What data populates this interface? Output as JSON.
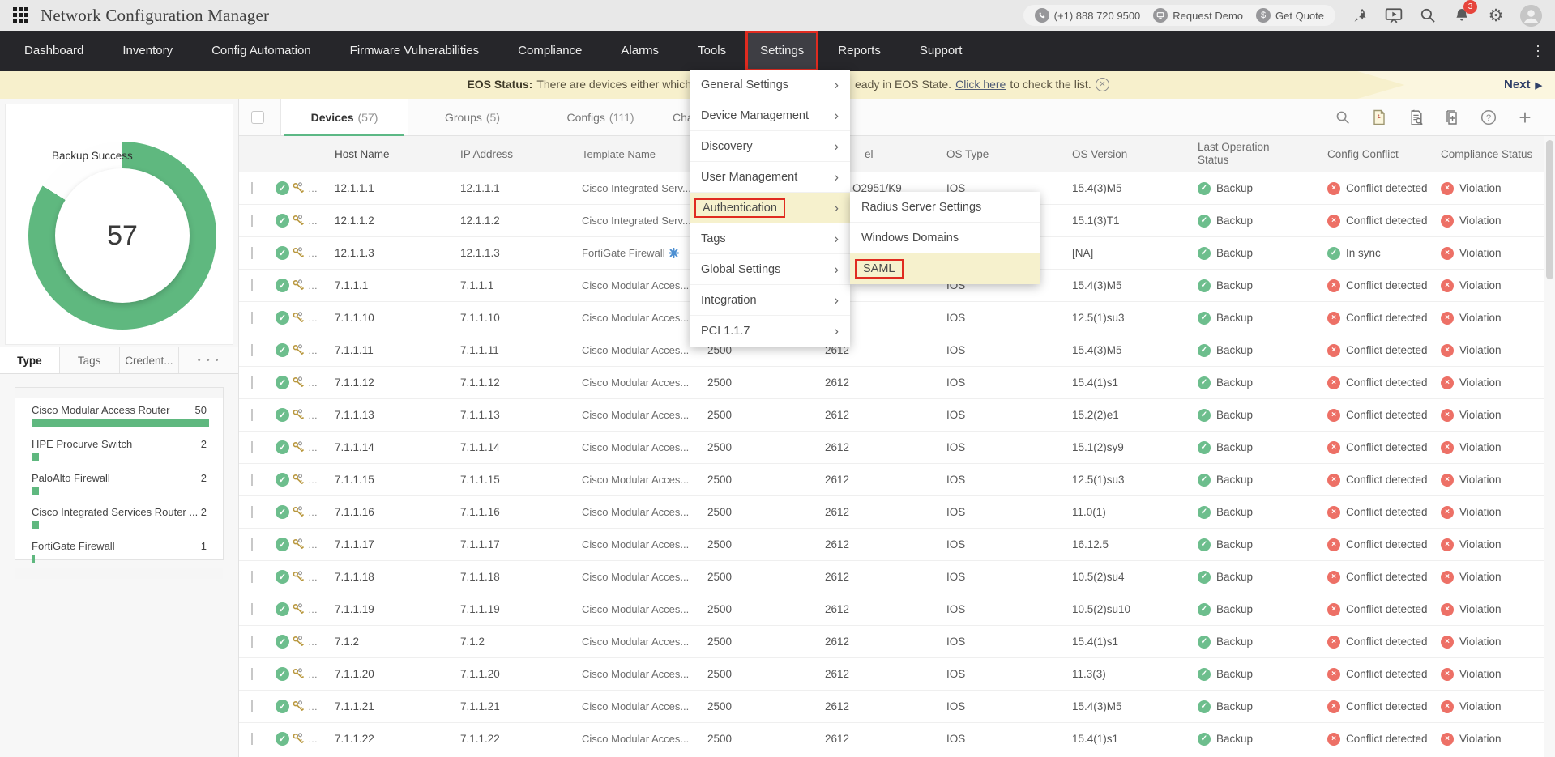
{
  "app": {
    "title": "Network Configuration Manager"
  },
  "topbar": {
    "phone": "(+1) 888 720 9500",
    "request_demo": "Request Demo",
    "get_quote": "Get Quote",
    "notifications_badge": "3"
  },
  "navbar": {
    "items": [
      "Dashboard",
      "Inventory",
      "Config Automation",
      "Firmware Vulnerabilities",
      "Compliance",
      "Alarms",
      "Tools",
      "Settings",
      "Reports",
      "Support"
    ],
    "active_item": "Settings"
  },
  "banner": {
    "label_bold": "EOS Status:",
    "text_left": "There are devices either which",
    "text_right": "eady in EOS State.",
    "link_text": "Click here",
    "text_right_tail": "to check the list.",
    "next_label": "Next"
  },
  "settings_menu": {
    "items": [
      "General Settings",
      "Device Management",
      "Discovery",
      "User Management",
      "Authentication",
      "Tags",
      "Global Settings",
      "Integration",
      "PCI 1.1.7"
    ],
    "highlighted_item": "Authentication",
    "submenu": {
      "items": [
        "Radius Server Settings",
        "Windows Domains",
        "SAML"
      ],
      "highlighted_item": "SAML"
    }
  },
  "sidebar": {
    "donut": {
      "label": "Backup Success",
      "value": "57"
    },
    "tabs": [
      "Type",
      "Tags",
      "Credent..."
    ],
    "more_tab": "• • •",
    "device_types": [
      {
        "name": "Cisco Modular Access Router",
        "count": 50
      },
      {
        "name": "HPE Procurve Switch",
        "count": 2
      },
      {
        "name": "PaloAlto Firewall",
        "count": 2
      },
      {
        "name": "Cisco Integrated Services Router ...",
        "count": 2
      },
      {
        "name": "FortiGate Firewall",
        "count": 1
      }
    ]
  },
  "main": {
    "tabs": [
      {
        "label": "Devices",
        "count": "(57)"
      },
      {
        "label": "Groups",
        "count": "(5)"
      },
      {
        "label": "Configs",
        "count": "(111)"
      },
      {
        "label": "Cha",
        "count": ""
      }
    ],
    "columns": {
      "host": "Host Name",
      "ip": "IP Address",
      "template": "Template Name",
      "series": "",
      "model_fragment": "el",
      "os_type": "OS Type",
      "os_version": "OS Version",
      "last_operation": "Last Operation Status",
      "config_conflict": "Config Conflict",
      "compliance": "Compliance Status"
    },
    "rows": [
      {
        "host": "12.1.1.1",
        "ip": "12.1.1.1",
        "template": "Cisco Integrated Serv...",
        "series": "",
        "model": "O2951/K9",
        "model_partial": true,
        "os_type": "IOS",
        "os_version": "15.4(3)M5",
        "last_operation": "Backup",
        "config_conflict": "Conflict detected",
        "conflict_ok": false,
        "compliance": "Violation"
      },
      {
        "host": "12.1.1.2",
        "ip": "12.1.1.2",
        "template": "Cisco Integrated Serv...",
        "series": "",
        "model": "",
        "os_type": "",
        "os_version": "15.1(3)T1",
        "last_operation": "Backup",
        "config_conflict": "Conflict detected",
        "conflict_ok": false,
        "compliance": "Violation"
      },
      {
        "host": "12.1.1.3",
        "ip": "12.1.1.3",
        "template": "FortiGate Firewall",
        "template_icon": true,
        "series": "",
        "model": "",
        "os_type": "",
        "os_version": "[NA]",
        "last_operation": "Backup",
        "config_conflict": "In sync",
        "conflict_ok": true,
        "compliance": "Violation"
      },
      {
        "host": "7.1.1.1",
        "ip": "7.1.1.1",
        "template": "Cisco Modular Acces...",
        "series": "",
        "model": "",
        "os_type": "IOS",
        "os_version": "15.4(3)M5",
        "last_operation": "Backup",
        "config_conflict": "Conflict detected",
        "conflict_ok": false,
        "compliance": "Violation"
      },
      {
        "host": "7.1.1.10",
        "ip": "7.1.1.10",
        "template": "Cisco Modular Acces...",
        "series": "",
        "model": "",
        "os_type": "IOS",
        "os_version": "12.5(1)su3",
        "last_operation": "Backup",
        "config_conflict": "Conflict detected",
        "conflict_ok": false,
        "compliance": "Violation"
      },
      {
        "host": "7.1.1.11",
        "ip": "7.1.1.11",
        "template": "Cisco Modular Acces...",
        "series": "2500",
        "model": "2612",
        "os_type": "IOS",
        "os_version": "15.4(3)M5",
        "last_operation": "Backup",
        "config_conflict": "Conflict detected",
        "conflict_ok": false,
        "compliance": "Violation"
      },
      {
        "host": "7.1.1.12",
        "ip": "7.1.1.12",
        "template": "Cisco Modular Acces...",
        "series": "2500",
        "model": "2612",
        "os_type": "IOS",
        "os_version": "15.4(1)s1",
        "last_operation": "Backup",
        "config_conflict": "Conflict detected",
        "conflict_ok": false,
        "compliance": "Violation"
      },
      {
        "host": "7.1.1.13",
        "ip": "7.1.1.13",
        "template": "Cisco Modular Acces...",
        "series": "2500",
        "model": "2612",
        "os_type": "IOS",
        "os_version": "15.2(2)e1",
        "last_operation": "Backup",
        "config_conflict": "Conflict detected",
        "conflict_ok": false,
        "compliance": "Violation"
      },
      {
        "host": "7.1.1.14",
        "ip": "7.1.1.14",
        "template": "Cisco Modular Acces...",
        "series": "2500",
        "model": "2612",
        "os_type": "IOS",
        "os_version": "15.1(2)sy9",
        "last_operation": "Backup",
        "config_conflict": "Conflict detected",
        "conflict_ok": false,
        "compliance": "Violation"
      },
      {
        "host": "7.1.1.15",
        "ip": "7.1.1.15",
        "template": "Cisco Modular Acces...",
        "series": "2500",
        "model": "2612",
        "os_type": "IOS",
        "os_version": "12.5(1)su3",
        "last_operation": "Backup",
        "config_conflict": "Conflict detected",
        "conflict_ok": false,
        "compliance": "Violation"
      },
      {
        "host": "7.1.1.16",
        "ip": "7.1.1.16",
        "template": "Cisco Modular Acces...",
        "series": "2500",
        "model": "2612",
        "os_type": "IOS",
        "os_version": "11.0(1)",
        "last_operation": "Backup",
        "config_conflict": "Conflict detected",
        "conflict_ok": false,
        "compliance": "Violation"
      },
      {
        "host": "7.1.1.17",
        "ip": "7.1.1.17",
        "template": "Cisco Modular Acces...",
        "series": "2500",
        "model": "2612",
        "os_type": "IOS",
        "os_version": "16.12.5",
        "last_operation": "Backup",
        "config_conflict": "Conflict detected",
        "conflict_ok": false,
        "compliance": "Violation"
      },
      {
        "host": "7.1.1.18",
        "ip": "7.1.1.18",
        "template": "Cisco Modular Acces...",
        "series": "2500",
        "model": "2612",
        "os_type": "IOS",
        "os_version": "10.5(2)su4",
        "last_operation": "Backup",
        "config_conflict": "Conflict detected",
        "conflict_ok": false,
        "compliance": "Violation"
      },
      {
        "host": "7.1.1.19",
        "ip": "7.1.1.19",
        "template": "Cisco Modular Acces...",
        "series": "2500",
        "model": "2612",
        "os_type": "IOS",
        "os_version": "10.5(2)su10",
        "last_operation": "Backup",
        "config_conflict": "Conflict detected",
        "conflict_ok": false,
        "compliance": "Violation"
      },
      {
        "host": "7.1.2",
        "ip": "7.1.2",
        "template": "Cisco Modular Acces...",
        "series": "2500",
        "model": "2612",
        "os_type": "IOS",
        "os_version": "15.4(1)s1",
        "last_operation": "Backup",
        "config_conflict": "Conflict detected",
        "conflict_ok": false,
        "compliance": "Violation"
      },
      {
        "host": "7.1.1.20",
        "ip": "7.1.1.20",
        "template": "Cisco Modular Acces...",
        "series": "2500",
        "model": "2612",
        "os_type": "IOS",
        "os_version": "11.3(3)",
        "last_operation": "Backup",
        "config_conflict": "Conflict detected",
        "conflict_ok": false,
        "compliance": "Violation"
      },
      {
        "host": "7.1.1.21",
        "ip": "7.1.1.21",
        "template": "Cisco Modular Acces...",
        "series": "2500",
        "model": "2612",
        "os_type": "IOS",
        "os_version": "15.4(3)M5",
        "last_operation": "Backup",
        "config_conflict": "Conflict detected",
        "conflict_ok": false,
        "compliance": "Violation"
      },
      {
        "host": "7.1.1.22",
        "ip": "7.1.1.22",
        "template": "Cisco Modular Acces...",
        "series": "2500",
        "model": "2612",
        "os_type": "IOS",
        "os_version": "15.4(1)s1",
        "last_operation": "Backup",
        "config_conflict": "Conflict detected",
        "conflict_ok": false,
        "compliance": "Violation"
      }
    ]
  },
  "colors": {
    "accent_green": "#5fb87f",
    "status_green": "#6dbe8d",
    "status_red": "#ed7066",
    "highlight_yellow": "#f6f1cd",
    "annotation_red": "#e02b20",
    "banner_bg": "#f7f0cc"
  }
}
